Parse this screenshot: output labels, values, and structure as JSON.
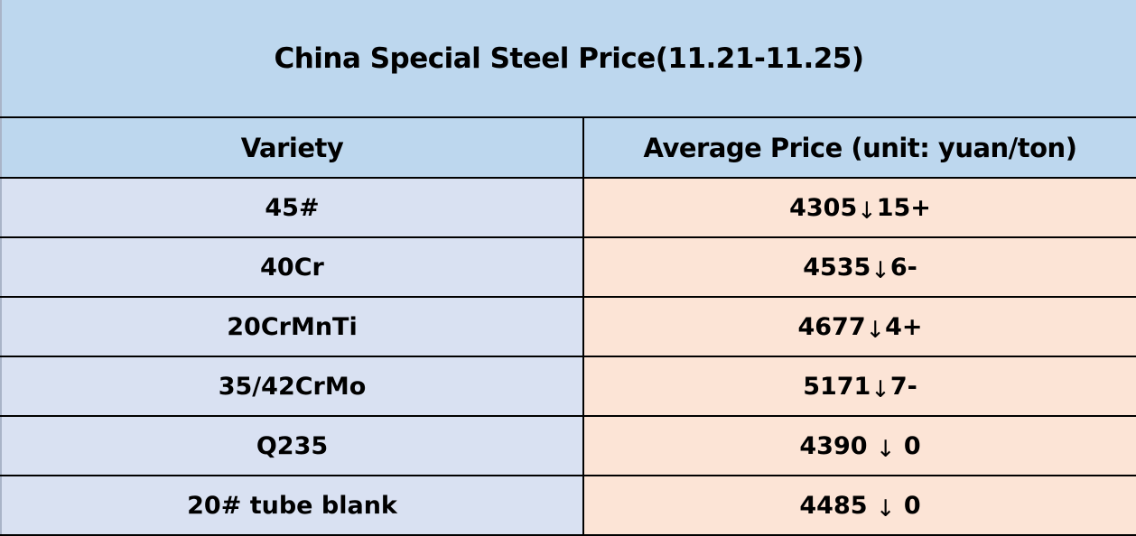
{
  "title": "China Special Steel Price(11.21-11.25)",
  "columns": {
    "variety": "Variety",
    "price": "Average Price (unit: yuan/ton)"
  },
  "rows": [
    {
      "variety": "45#",
      "price_value": "4305",
      "arrow": "↓",
      "change": "15+"
    },
    {
      "variety": "40Cr",
      "price_value": "4535",
      "arrow": "↓",
      "change": "6-"
    },
    {
      "variety": "20CrMnTi",
      "price_value": "4677",
      "arrow": "↓",
      "change": "4+"
    },
    {
      "variety": "35/42CrMo",
      "price_value": "5171",
      "arrow": "↓",
      "change": "7-"
    },
    {
      "variety": "Q235",
      "price_value": "4390 ",
      "arrow": "↓",
      "change": " 0"
    },
    {
      "variety": "20# tube blank",
      "price_value": "4485 ",
      "arrow": "↓",
      "change": " 0"
    }
  ],
  "colors": {
    "title_bg": "#BDD7EE",
    "header_bg": "#BDD7EE",
    "variety_bg": "#D9E1F2",
    "price_bg": "#FCE4D6",
    "border": "#000000",
    "text": "#000000"
  },
  "chart_data": {
    "type": "table",
    "title": "China Special Steel Price(11.21-11.25)",
    "columns": [
      "Variety",
      "Average Price (unit: yuan/ton)"
    ],
    "rows": [
      [
        "45#",
        "4305↓15+"
      ],
      [
        "40Cr",
        "4535↓6-"
      ],
      [
        "20CrMnTi",
        "4677↓4+"
      ],
      [
        "35/42CrMo",
        "5171↓7-"
      ],
      [
        "Q235",
        "4390 ↓ 0"
      ],
      [
        "20# tube blank",
        "4485 ↓ 0"
      ]
    ],
    "prices": [
      4305,
      4535,
      4677,
      5171,
      4390,
      4485
    ],
    "price_direction": [
      "down",
      "down",
      "down",
      "down",
      "flat",
      "flat"
    ],
    "change_text": [
      "↓15+",
      "↓6-",
      "↓4+",
      "↓7-",
      "↓ 0",
      "↓ 0"
    ]
  }
}
